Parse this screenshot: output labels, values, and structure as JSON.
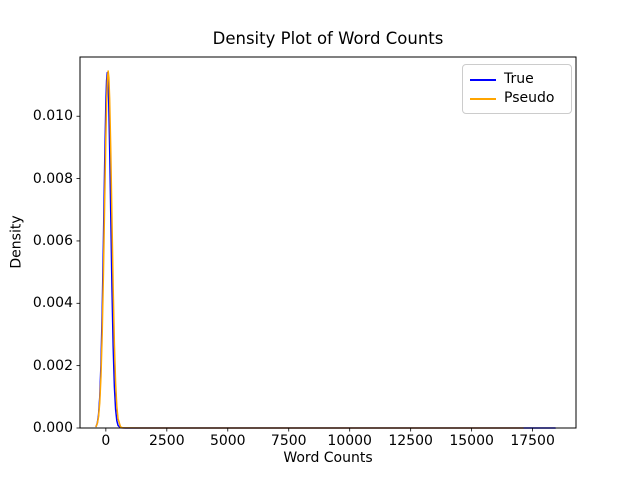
{
  "chart_data": {
    "type": "line",
    "title": "Density Plot of Word Counts",
    "xlabel": "Word Counts",
    "ylabel": "Density",
    "xlim": [
      -1060,
      19280
    ],
    "ylim": [
      0,
      0.0119
    ],
    "grid": false,
    "xticks": {
      "values": [
        0,
        2500,
        5000,
        7500,
        10000,
        12500,
        15000,
        17500
      ],
      "labels": [
        "0",
        "2500",
        "5000",
        "7500",
        "10000",
        "12500",
        "15000",
        "17500"
      ]
    },
    "yticks": {
      "values": [
        0,
        0.002,
        0.004,
        0.006,
        0.008,
        0.01
      ],
      "labels": [
        "0.000",
        "0.002",
        "0.004",
        "0.006",
        "0.008",
        "0.010"
      ]
    },
    "legend": {
      "position": "upper right",
      "entries": [
        {
          "label": "True",
          "color": "#0000ff"
        },
        {
          "label": "Pseudo",
          "color": "#ffa500"
        }
      ]
    },
    "series": [
      {
        "name": "True",
        "color": "#0000ff",
        "peak": {
          "x": 60,
          "density": 0.0114
        },
        "points": [
          [
            -400,
            5.1e-05
          ],
          [
            -350,
            0.000156
          ],
          [
            -300,
            0.000417
          ],
          [
            -250,
            0.000983
          ],
          [
            -200,
            0.002033
          ],
          [
            -150,
            0.003701
          ],
          [
            -100,
            0.005934
          ],
          [
            -50,
            0.008372
          ],
          [
            0,
            0.0104
          ],
          [
            30,
            0.011141
          ],
          [
            60,
            0.0114
          ],
          [
            90,
            0.011141
          ],
          [
            120,
            0.0104
          ],
          [
            160,
            0.008833
          ],
          [
            200,
            0.006914
          ],
          [
            250,
            0.004539
          ],
          [
            300,
            0.002622
          ],
          [
            350,
            0.001334
          ],
          [
            400,
            0.000597
          ],
          [
            450,
            0.000236
          ],
          [
            500,
            8.2e-05
          ],
          [
            600,
            6.7e-06
          ],
          [
            800,
            2e-06
          ],
          [
            1500,
            2e-06
          ],
          [
            5000,
            2e-06
          ],
          [
            10000,
            2e-06
          ],
          [
            15000,
            2e-06
          ],
          [
            18430,
            2e-06
          ]
        ]
      },
      {
        "name": "Pseudo",
        "color": "#ffa500",
        "peak": {
          "x": 95,
          "density": 0.01145
        },
        "points": [
          [
            -400,
            4.9e-05
          ],
          [
            -350,
            0.000141
          ],
          [
            -300,
            0.000357
          ],
          [
            -250,
            0.000813
          ],
          [
            -200,
            0.001656
          ],
          [
            -150,
            0.003017
          ],
          [
            -100,
            0.004919
          ],
          [
            -50,
            0.007176
          ],
          [
            0,
            0.009369
          ],
          [
            35,
            0.010569
          ],
          [
            65,
            0.011223
          ],
          [
            95,
            0.01145
          ],
          [
            125,
            0.011223
          ],
          [
            155,
            0.010569
          ],
          [
            200,
            0.008962
          ],
          [
            250,
            0.006713
          ],
          [
            300,
            0.0045
          ],
          [
            350,
            0.002699
          ],
          [
            400,
            0.00145
          ],
          [
            450,
            0.000696
          ],
          [
            500,
            0.000299
          ],
          [
            600,
            4e-05
          ],
          [
            700,
            3.5e-06
          ],
          [
            1500,
            2e-06
          ],
          [
            5000,
            2e-06
          ],
          [
            10000,
            2e-06
          ],
          [
            17116,
            2e-06
          ]
        ]
      }
    ]
  }
}
